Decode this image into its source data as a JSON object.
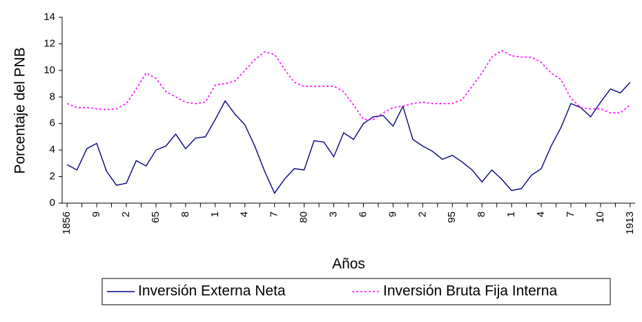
{
  "chart_data": {
    "type": "line",
    "x_label": "Años",
    "y_label": "Porcentaje del PNB",
    "categories": [
      "1856",
      null,
      null,
      "9",
      null,
      null,
      "2",
      null,
      null,
      "65",
      null,
      null,
      "8",
      null,
      null,
      "1",
      null,
      null,
      "4",
      null,
      null,
      "7",
      null,
      null,
      "80",
      null,
      null,
      "3",
      null,
      null,
      "6",
      null,
      null,
      "9",
      null,
      null,
      "2",
      null,
      null,
      "95",
      null,
      null,
      "8",
      null,
      null,
      "1",
      null,
      null,
      "4",
      null,
      null,
      "7",
      null,
      null,
      "10",
      null,
      null,
      "1913"
    ],
    "series": [
      {
        "name": "Inversión Externa Neta",
        "color": "#000080",
        "dash": false,
        "values": [
          2.9,
          2.5,
          4.1,
          4.5,
          2.4,
          1.35,
          1.5,
          3.2,
          2.8,
          4.0,
          4.3,
          5.2,
          4.1,
          4.9,
          5.0,
          6.3,
          7.7,
          6.7,
          5.9,
          4.3,
          2.4,
          0.75,
          1.8,
          2.6,
          2.5,
          4.7,
          4.6,
          3.5,
          5.3,
          4.8,
          6.0,
          6.5,
          6.6,
          5.8,
          7.3,
          4.8,
          4.3,
          3.9,
          3.3,
          3.6,
          3.1,
          2.5,
          1.6,
          2.5,
          1.8,
          0.95,
          1.1,
          2.1,
          2.6,
          4.3,
          5.7,
          7.5,
          7.2,
          6.5,
          7.6,
          8.6,
          8.3,
          9.1
        ]
      },
      {
        "name": "Inversión Bruta Fija Interna",
        "color": "#ff00ff",
        "dash": true,
        "values": [
          7.5,
          7.2,
          7.2,
          7.1,
          7.05,
          7.1,
          7.5,
          8.6,
          9.8,
          9.4,
          8.4,
          8.0,
          7.6,
          7.5,
          7.6,
          8.9,
          9.0,
          9.2,
          10.0,
          10.8,
          11.4,
          11.2,
          10.1,
          9.1,
          8.8,
          8.8,
          8.8,
          8.8,
          8.4,
          7.4,
          6.3,
          6.3,
          6.8,
          7.2,
          7.3,
          7.5,
          7.6,
          7.5,
          7.5,
          7.5,
          7.8,
          8.8,
          9.8,
          11.0,
          11.5,
          11.1,
          11.0,
          11.0,
          10.6,
          9.8,
          9.3,
          7.9,
          7.2,
          7.1,
          7.1,
          6.8,
          6.8,
          7.4
        ]
      }
    ],
    "ylim": [
      0,
      14
    ],
    "yticks": [
      0,
      2,
      4,
      6,
      8,
      10,
      12,
      14
    ],
    "legend": "bottom"
  }
}
